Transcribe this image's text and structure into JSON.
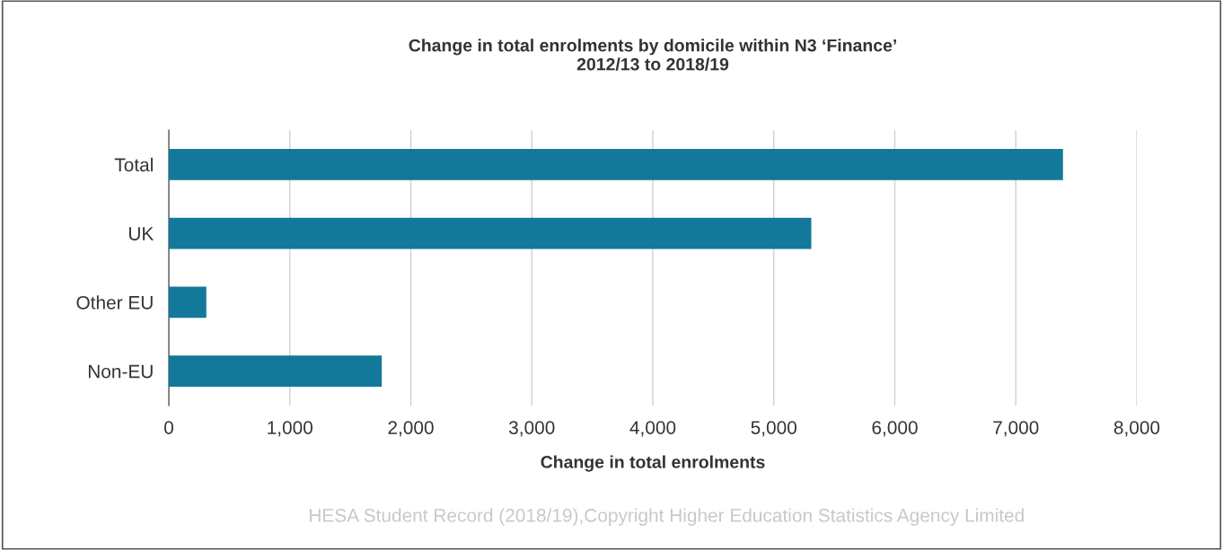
{
  "chart_data": {
    "type": "bar",
    "orientation": "horizontal",
    "title": "Change in total enrolments by domicile within N3 ‘Finance’\n2012/13 to 2018/19",
    "xlabel": "Change in total enrolments",
    "categories": [
      "Total",
      "UK",
      "Other EU",
      "Non-EU"
    ],
    "values": [
      7390,
      5310,
      310,
      1760
    ],
    "color": "#137899",
    "xlim": [
      0,
      8000
    ],
    "xticks": [
      {
        "value": 0,
        "label": "0"
      },
      {
        "value": 1000,
        "label": "1,000"
      },
      {
        "value": 2000,
        "label": "2,000"
      },
      {
        "value": 3000,
        "label": "3,000"
      },
      {
        "value": 4000,
        "label": "4,000"
      },
      {
        "value": 5000,
        "label": "5,000"
      },
      {
        "value": 6000,
        "label": "6,000"
      },
      {
        "value": 7000,
        "label": "7,000"
      },
      {
        "value": 8000,
        "label": "8,000"
      }
    ],
    "grid": "x",
    "legend": false,
    "annotations": [
      "HESA Student Record (2018/19),Copyright Higher Education Statistics Agency Limited"
    ]
  }
}
